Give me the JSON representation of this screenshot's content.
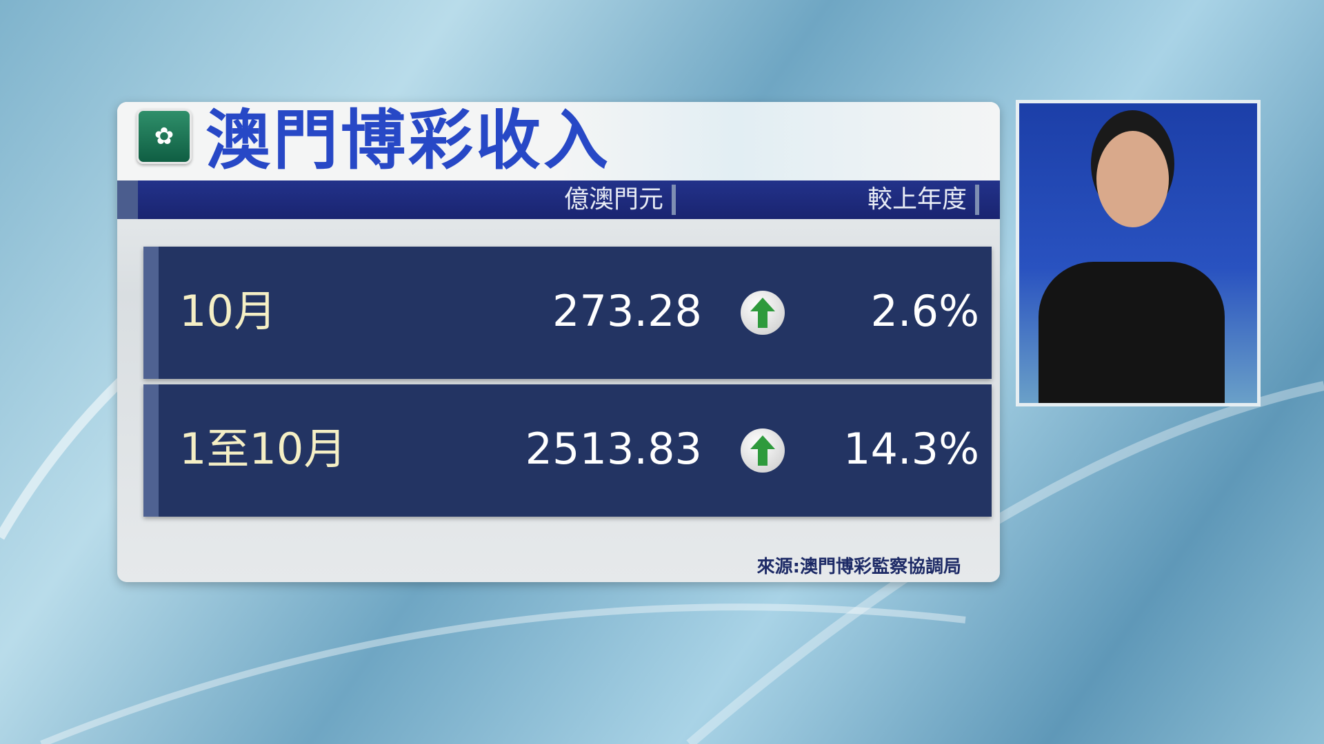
{
  "title": "澳門博彩收入",
  "logo_icon": "macau-emblem-icon",
  "headers": {
    "value": "億澳門元",
    "change": "較上年度"
  },
  "rows": [
    {
      "label": "10月",
      "value": "273.28",
      "trend": "up",
      "change": "2.6%"
    },
    {
      "label": "1至10月",
      "value": "2513.83",
      "trend": "up",
      "change": "14.3%"
    }
  ],
  "source": "來源:澳門博彩監察協調局",
  "colors": {
    "title": "#2748c6",
    "row_bg": "#233463",
    "label": "#f5efc5",
    "arrow": "#2e9a3c"
  }
}
